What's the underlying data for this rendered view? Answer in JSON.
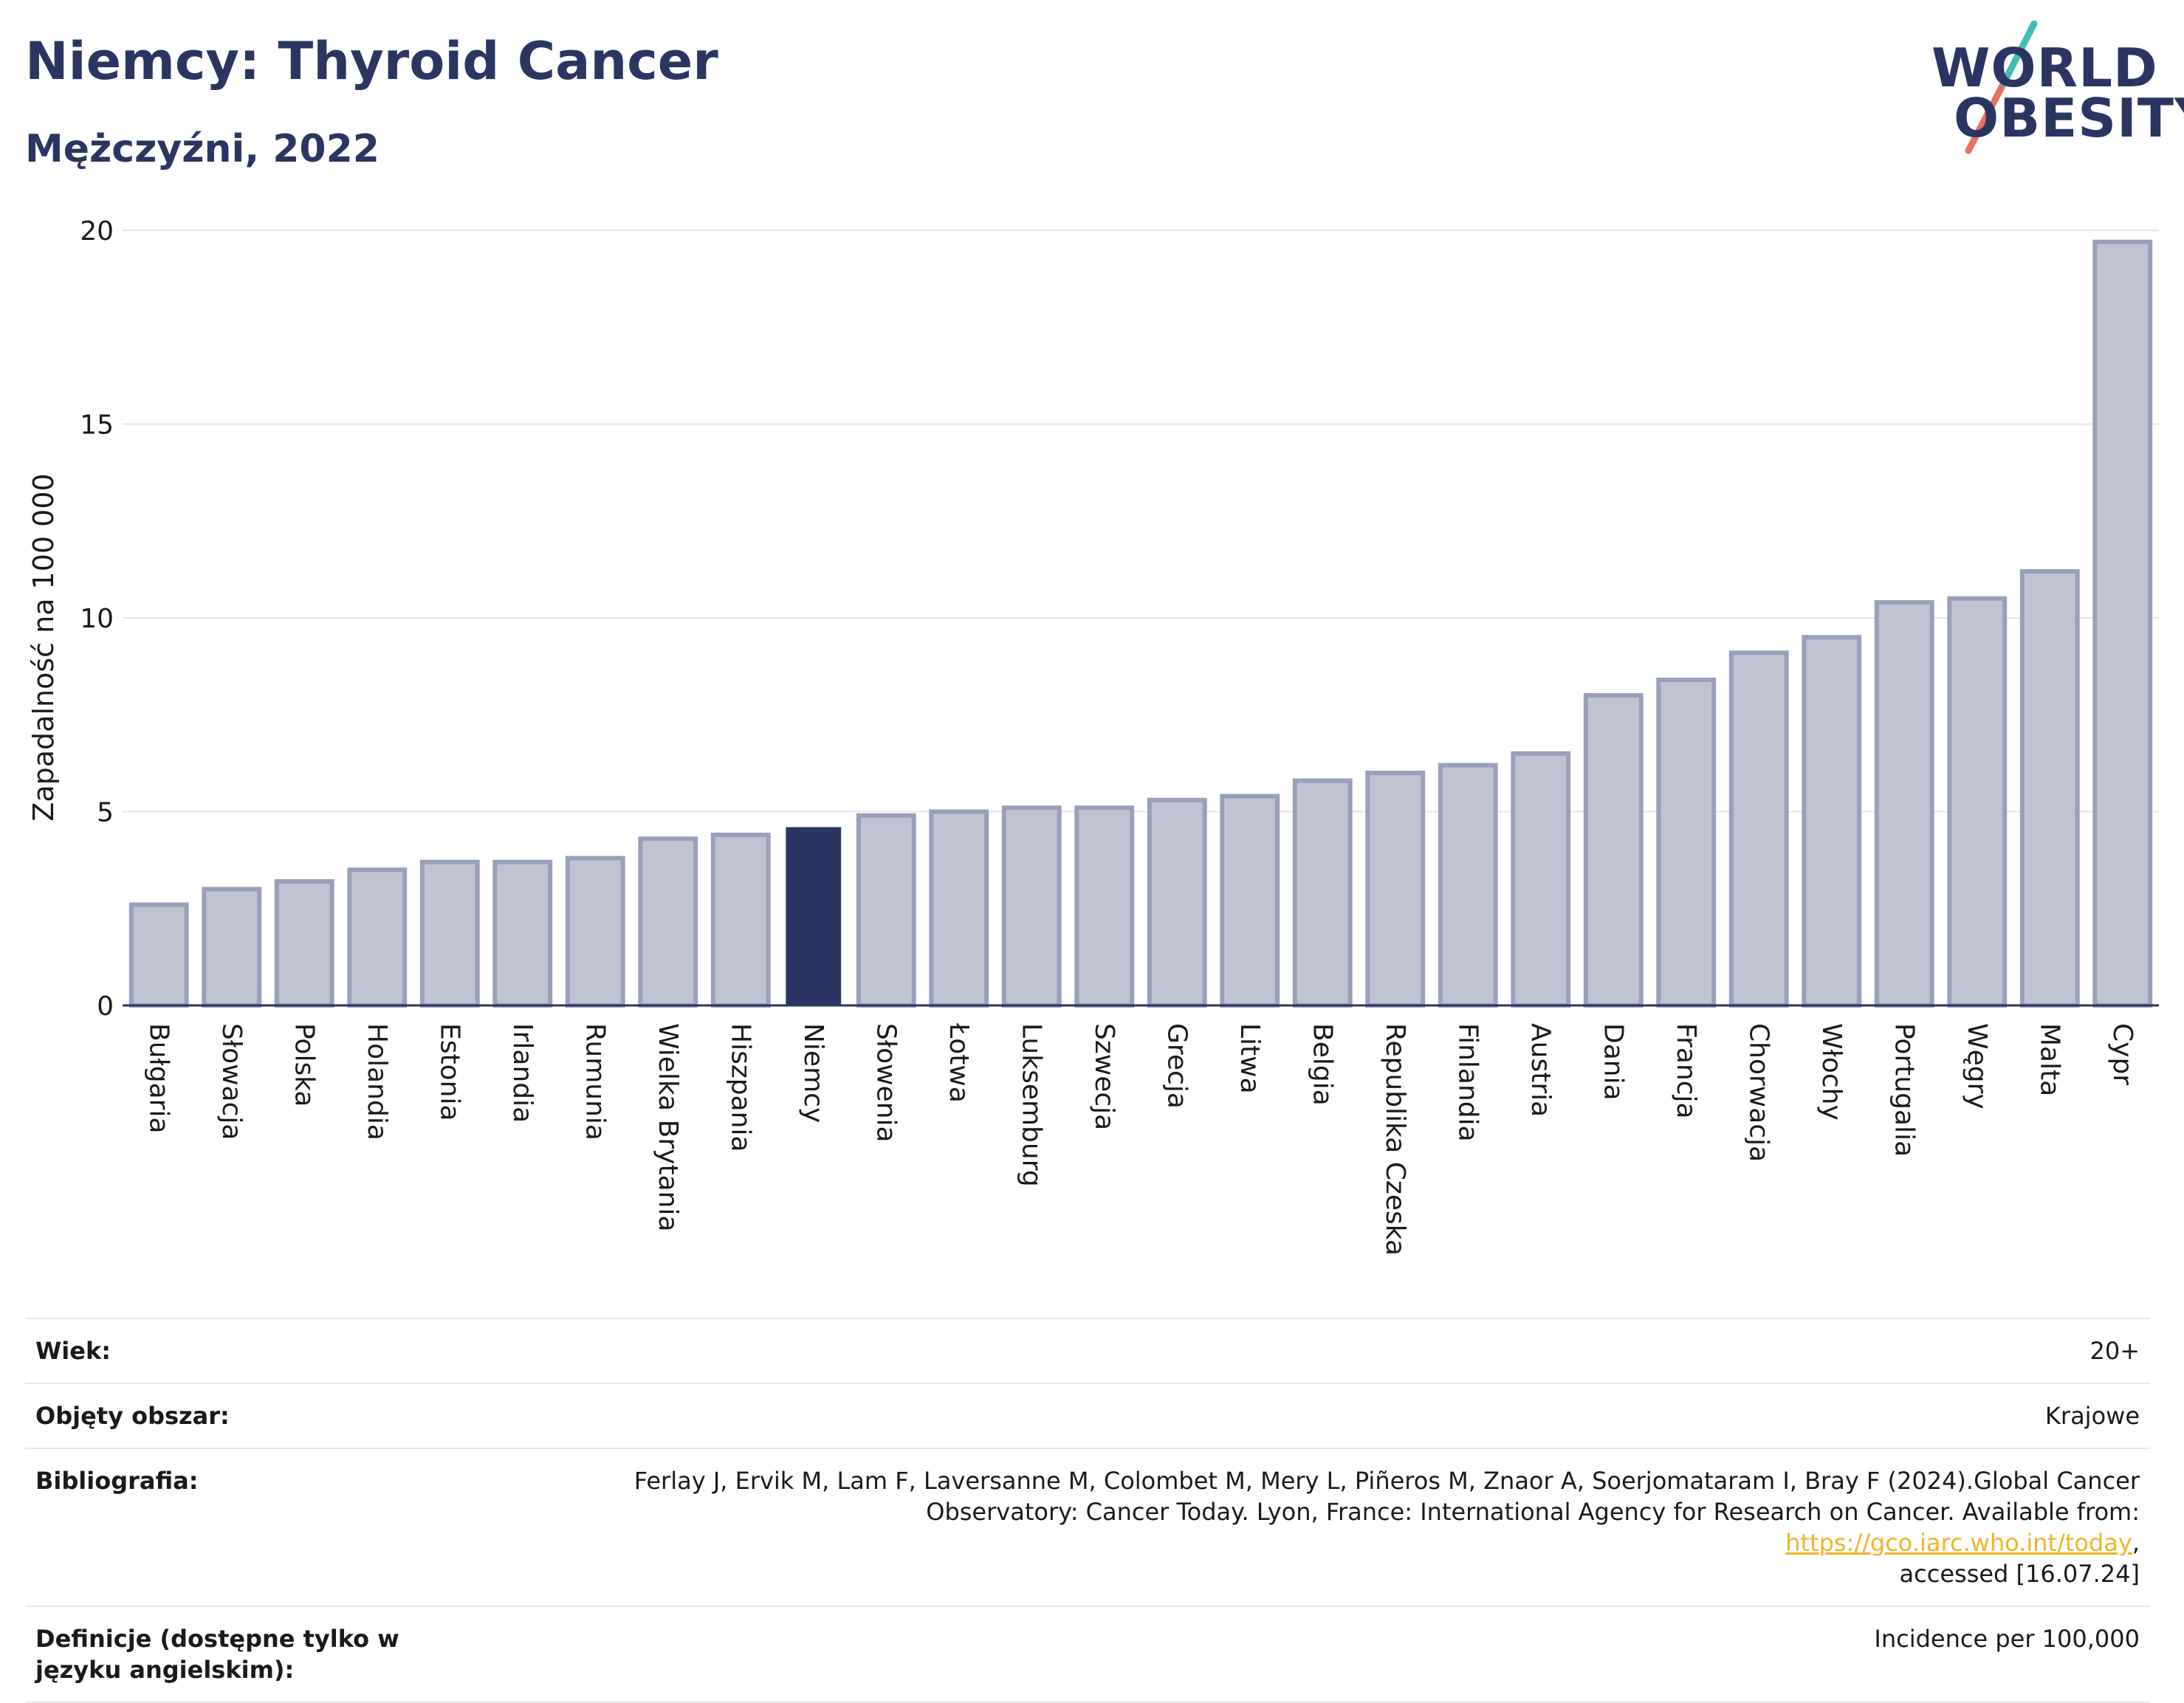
{
  "header": {
    "title": "Niemcy: Thyroid Cancer",
    "subtitle": "Mężczyźni, 2022"
  },
  "logo": {
    "line1": "WORLD",
    "line2": "OBESITY",
    "slash_colors": [
      "#3ebdb5",
      "#e8735e"
    ]
  },
  "colors": {
    "bar": "#c0c3d1",
    "bar_border": "#9aa0ba",
    "highlight": "#2b3561",
    "axis": "#2b3561",
    "grid": "#e6e6e6",
    "link": "#f0b429"
  },
  "chart_data": {
    "type": "bar",
    "title": "",
    "xlabel": "",
    "ylabel": "Zapadalność na 100 000",
    "ylim": [
      0,
      20
    ],
    "yticks": [
      0,
      5,
      10,
      15,
      20
    ],
    "grid": true,
    "highlight": "Niemcy",
    "categories": [
      "Bułgaria",
      "Słowacja",
      "Polska",
      "Holandia",
      "Estonia",
      "Irlandia",
      "Rumunia",
      "Wielka Brytania",
      "Hiszpania",
      "Niemcy",
      "Słowenia",
      "Łotwa",
      "Luksemburg",
      "Szwecja",
      "Grecja",
      "Litwa",
      "Belgia",
      "Republika Czeska",
      "Finlandia",
      "Austria",
      "Dania",
      "Francja",
      "Chorwacja",
      "Włochy",
      "Portugalia",
      "Węgry",
      "Malta",
      "Cypr"
    ],
    "values": [
      2.6,
      3.0,
      3.2,
      3.5,
      3.7,
      3.7,
      3.8,
      4.3,
      4.4,
      4.6,
      4.9,
      5.0,
      5.1,
      5.1,
      5.3,
      5.4,
      5.8,
      6.0,
      6.2,
      6.5,
      8.0,
      8.4,
      9.1,
      9.5,
      10.4,
      10.5,
      11.2,
      19.7
    ]
  },
  "info": {
    "age_label": "Wiek:",
    "age_value": "20+",
    "coverage_label": "Objęty obszar:",
    "coverage_value": "Krajowe",
    "bib_label": "Bibliografia:",
    "bib_line1": "Ferlay J, Ervik M, Lam F, Laversanne M, Colombet M, Mery L, Piñeros M, Znaor A, Soerjomataram I, Bray F (2024).Global Cancer",
    "bib_line2_prefix": "Observatory: Cancer Today. Lyon, France: International Agency for Research on Cancer. Available from: ",
    "bib_link": "https://gco.iarc.who.int/today",
    "bib_line2_suffix": ",",
    "bib_line3": "accessed [16.07.24]",
    "def_label": "Definicje (dostępne tylko w języku angielskim):",
    "def_value": "Incidence per 100,000"
  }
}
